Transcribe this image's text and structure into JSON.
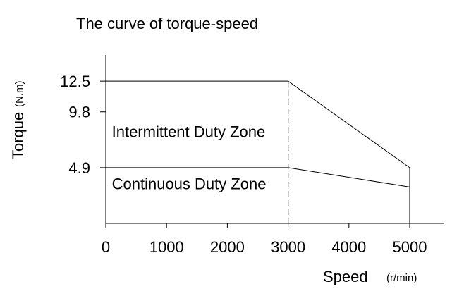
{
  "chart_data": {
    "type": "line",
    "title": "The curve of torque-speed",
    "ylabel": "Torque",
    "ylabel_unit": "(N.m)",
    "xlabel": "Speed",
    "xlabel_unit": "(r/min)",
    "xlim": [
      0,
      5000
    ],
    "ylim": [
      0,
      14.8
    ],
    "x_ticks": [
      0,
      1000,
      2000,
      3000,
      4000,
      5000
    ],
    "x_tick_labels": [
      "0",
      "1000",
      "2000",
      "3000",
      "4000",
      "5000"
    ],
    "y_ticks": [
      4.9,
      9.8,
      12.5
    ],
    "y_tick_labels": [
      "4.9",
      "9.8",
      "12.5"
    ],
    "grid": false,
    "series": [
      {
        "x": [
          0,
          3000,
          5000
        ],
        "y": [
          12.5,
          12.5,
          4.9
        ]
      },
      {
        "x": [
          0,
          3000,
          5000
        ],
        "y": [
          4.9,
          4.9,
          3.2
        ]
      }
    ],
    "reference_line": {
      "x": 3000,
      "y_from": 0,
      "y_to": 12.5,
      "style": "dashed"
    },
    "annotations": [
      {
        "text": "Intermittent Duty Zone",
        "x": 100,
        "y": 7.6
      },
      {
        "text": "Continuous Duty Zone",
        "x": 100,
        "y": 3.0
      }
    ]
  }
}
